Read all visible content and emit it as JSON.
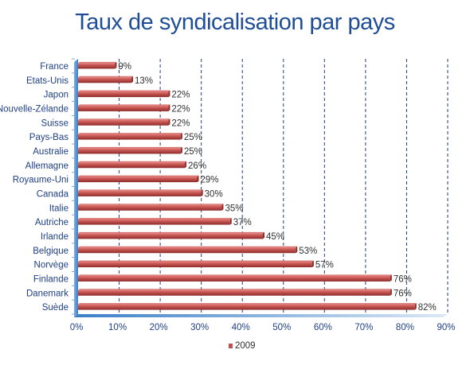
{
  "chart_data": {
    "type": "bar",
    "orientation": "horizontal",
    "title": "Taux de syndicalisation par pays",
    "xlabel": "",
    "ylabel": "",
    "categories": [
      "France",
      "Etats-Unis",
      "Japon",
      "Nouvelle-Zélande",
      "Suisse",
      "Pays-Bas",
      "Australie",
      "Allemagne",
      "Royaume-Uni",
      "Canada",
      "Italie",
      "Autriche",
      "Irlande",
      "Belgique",
      "Norvège",
      "Finlande",
      "Danemark",
      "Suède"
    ],
    "series": [
      {
        "name": "2009",
        "values": [
          9,
          13,
          22,
          22,
          22,
          25,
          25,
          26,
          29,
          30,
          35,
          37,
          45,
          53,
          57,
          76,
          76,
          82
        ],
        "labels": [
          "9%",
          "13%",
          "22%",
          "22%",
          "22%",
          "25%",
          "25%",
          "26%",
          "29%",
          "30%",
          "35%",
          "37%",
          "45%",
          "53%",
          "57%",
          "76%",
          "76%",
          "82%"
        ]
      }
    ],
    "xlim": [
      0,
      90
    ],
    "xticks": [
      0,
      10,
      20,
      30,
      40,
      50,
      60,
      70,
      80,
      90
    ],
    "xtick_labels": [
      "0%",
      "10%",
      "20%",
      "30%",
      "40%",
      "50%",
      "60%",
      "70%",
      "80%",
      "90%"
    ],
    "grid": "vertical dashed",
    "legend": "bottom",
    "colors": {
      "bar": "#c0504d",
      "bar_dark": "#8c2d2b",
      "grid": "#1f3f86",
      "text": "#1f3f86",
      "title": "#1f4e96",
      "axis_base": "#3a7fc8"
    }
  }
}
